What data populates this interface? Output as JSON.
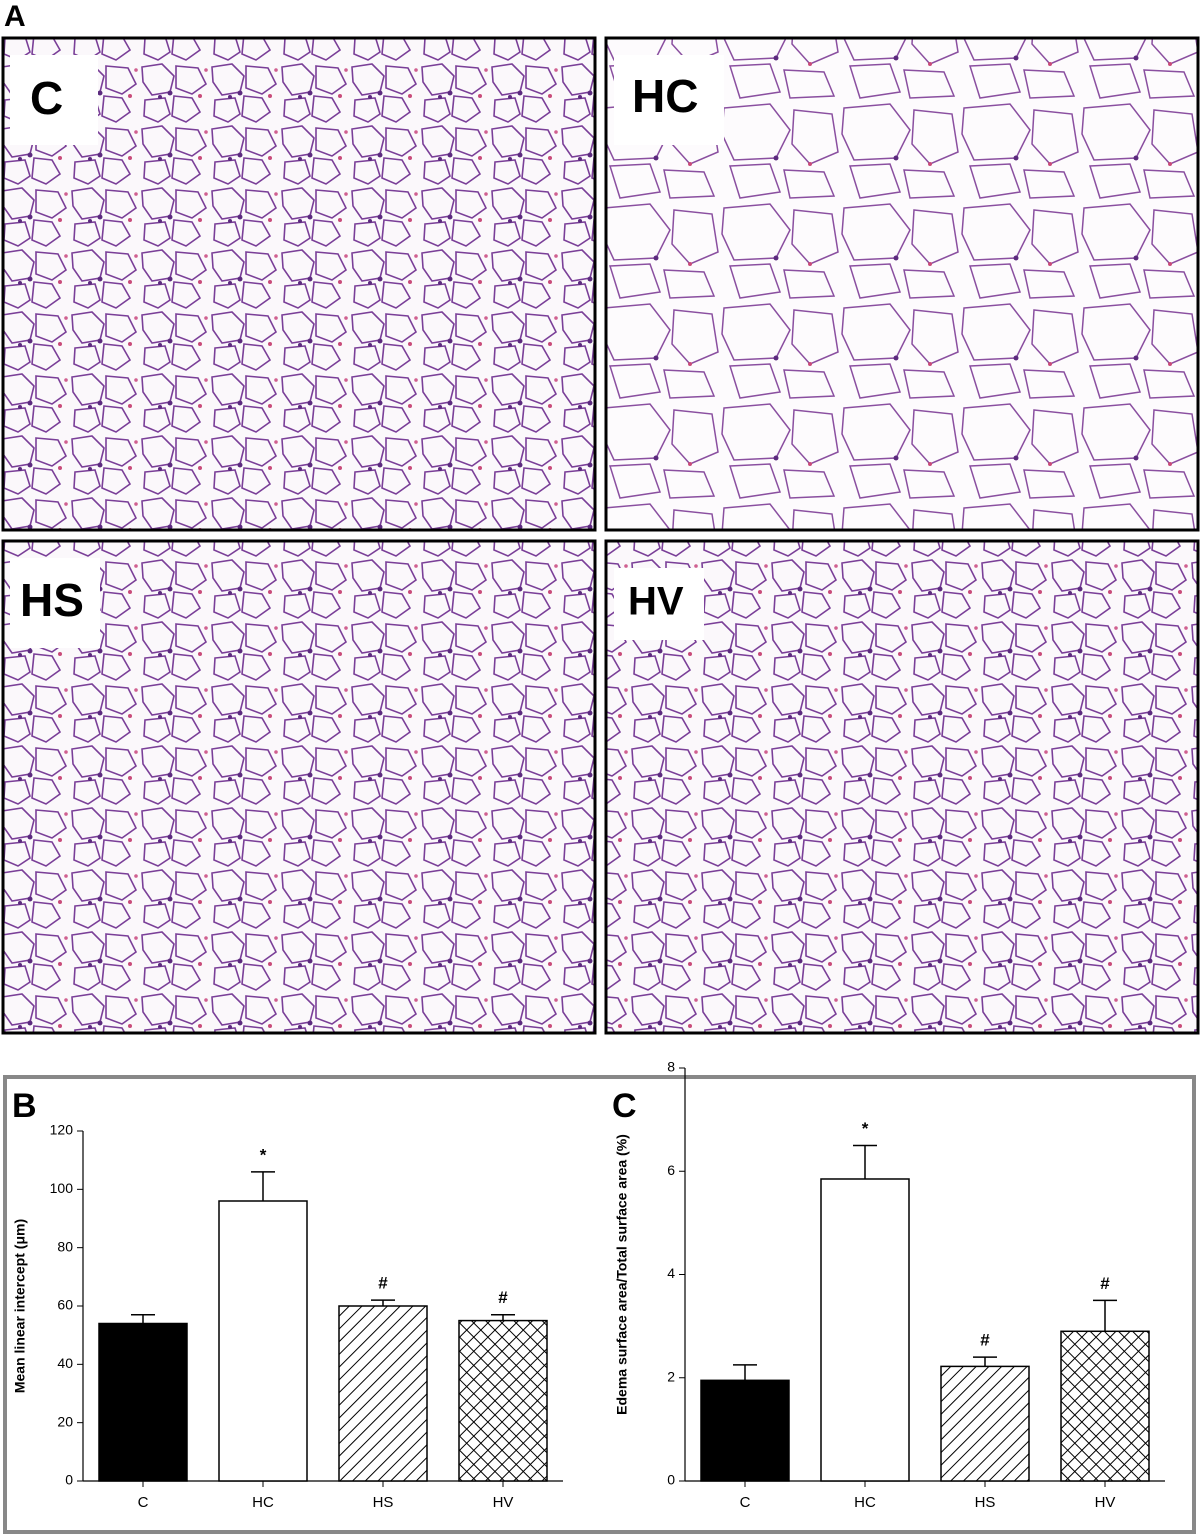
{
  "figure": {
    "panel_label": "A",
    "micrograph_labels": [
      "C",
      "HC",
      "HS",
      "HV"
    ]
  },
  "chart_data": [
    {
      "type": "bar",
      "panel_label": "B",
      "y_label": "Mean linear intercept (μm)",
      "categories": [
        "C",
        "HC",
        "HS",
        "HV"
      ],
      "values": [
        54,
        96,
        60,
        55
      ],
      "errors": [
        3,
        10,
        2,
        2
      ],
      "annotations": [
        null,
        "*",
        "#",
        "#"
      ],
      "fills": [
        "solid",
        "open",
        "hatch",
        "crosshatch"
      ],
      "color": "#000000",
      "ylim": [
        0,
        120
      ],
      "yticks": [
        0,
        20,
        40,
        60,
        80,
        100,
        120
      ]
    },
    {
      "type": "bar",
      "panel_label": "C",
      "y_label": "Edema surface area/Total surface area (%)",
      "categories": [
        "C",
        "HC",
        "HS",
        "HV"
      ],
      "values": [
        1.95,
        5.85,
        2.22,
        2.9
      ],
      "errors": [
        0.3,
        0.65,
        0.18,
        0.6
      ],
      "annotations": [
        null,
        "*",
        "#",
        "#"
      ],
      "fills": [
        "solid",
        "open",
        "hatch",
        "crosshatch"
      ],
      "color": "#000000",
      "ylim": [
        0,
        8
      ],
      "yticks": [
        0,
        2,
        4,
        6,
        8
      ]
    }
  ]
}
